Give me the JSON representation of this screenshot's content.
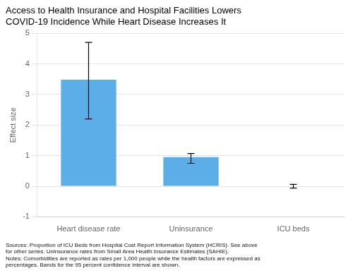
{
  "chart_data": {
    "type": "bar",
    "title": "Access to Health Insurance and Hospital Facilities Lowers\nCOVID-19 Incidence While Heart Disease Increases It",
    "ylabel": "Effect size",
    "categories": [
      "Heart disease rate",
      "Uninsurance",
      "ICU beds"
    ],
    "values": [
      3.48,
      0.95,
      0.0
    ],
    "errors_lower": [
      1.28,
      0.2,
      0.06
    ],
    "errors_upper": [
      1.22,
      0.12,
      0.06
    ],
    "color": "#5BAEE8",
    "ylim": [
      -1,
      5
    ],
    "yticks": [
      -1,
      0,
      1,
      2,
      3,
      4,
      5
    ],
    "grid": true,
    "source": "Sources: Proportion of ICU Beds from Hospital Cost Report Information System (HCRIS). See above\nfor other series. Uninsurance rates from Small Area Health Insurance Estimates (SAHIE).",
    "notes": "Notes: Comorbidities are reported as rates per 1,000 people while the health factors are expressed as\npercentages. Bands for the 95 percent confidence interval are shown."
  }
}
